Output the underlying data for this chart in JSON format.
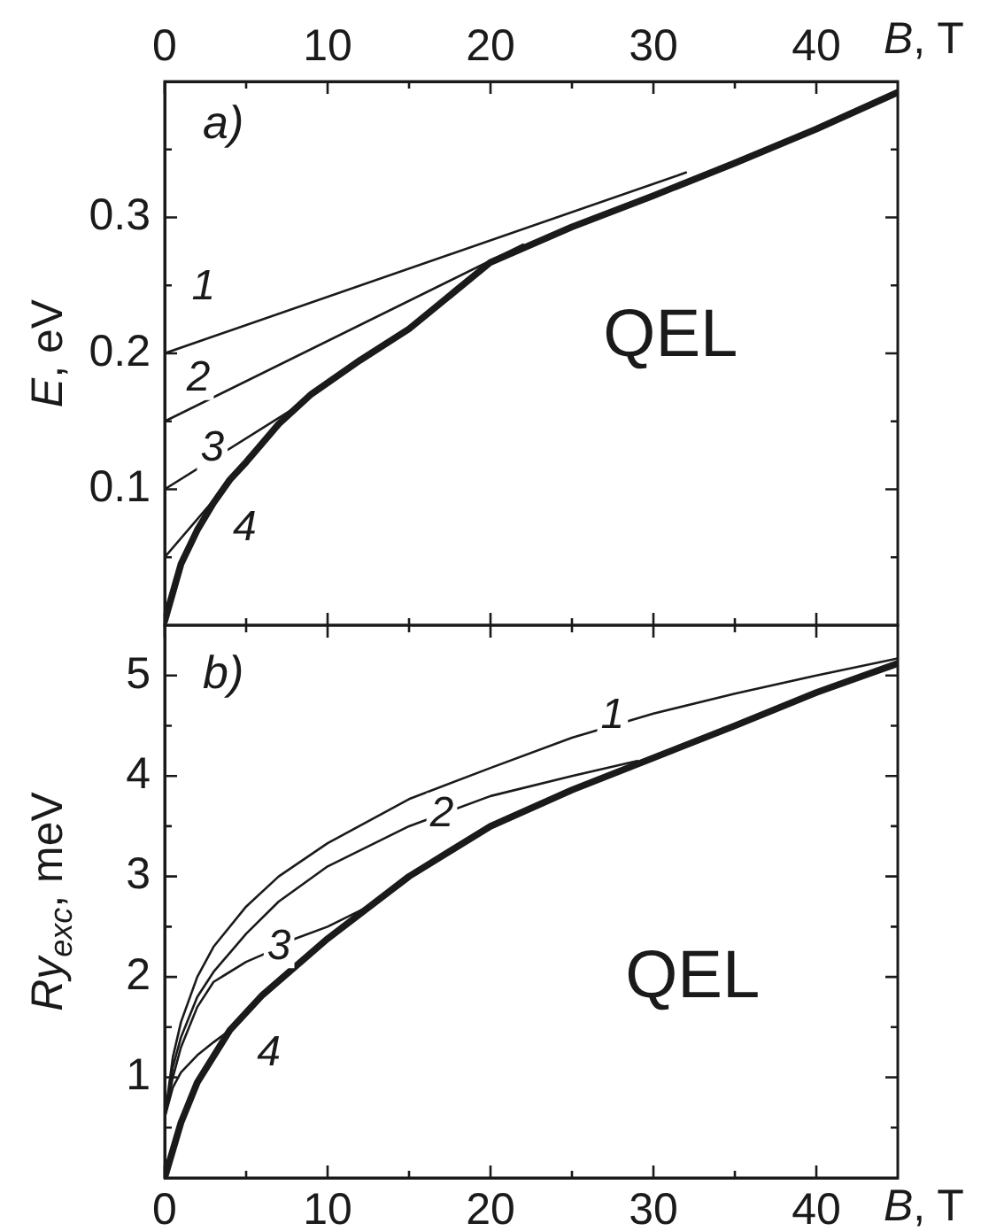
{
  "chart_data": [
    {
      "type": "line",
      "xlabel": "B, T",
      "ylabel": "E, eV",
      "xlim": [
        0,
        45
      ],
      "xticks": [
        0,
        {
          "value": 5,
          "label": null
        },
        10,
        {
          "value": 15,
          "label": null
        },
        20,
        {
          "value": 25,
          "label": null
        },
        30,
        {
          "value": 35,
          "label": null
        },
        40
      ],
      "ylim": [
        0,
        0.4
      ],
      "yticks": [
        {
          "value": 0.05,
          "label": null
        },
        0.1,
        {
          "value": 0.15,
          "label": null
        },
        0.2,
        {
          "value": 0.25,
          "label": null
        },
        0.3,
        {
          "value": 0.35,
          "label": null
        }
      ],
      "grid": false,
      "legend": false,
      "series": [
        {
          "name": "1",
          "color": "#1a1a1a",
          "x": [
            0,
            32
          ],
          "values": [
            0.2,
            0.333
          ]
        },
        {
          "name": "2",
          "color": "#1a1a1a",
          "x": [
            0,
            22
          ],
          "values": [
            0.15,
            0.28
          ]
        },
        {
          "name": "3",
          "color": "#1a1a1a",
          "x": [
            0,
            8
          ],
          "values": [
            0.1,
            0.16
          ]
        },
        {
          "name": "4",
          "color": "#1a1a1a",
          "x": [
            0,
            3.5
          ],
          "values": [
            0.05,
            0.099
          ]
        },
        {
          "color": "#1a1a1a",
          "x": [
            0,
            1,
            2,
            3,
            4,
            5,
            7,
            9,
            12,
            15,
            20,
            25,
            30,
            35,
            40,
            45
          ],
          "values": [
            0.003,
            0.045,
            0.07,
            0.09,
            0.107,
            0.12,
            0.148,
            0.17,
            0.195,
            0.218,
            0.267,
            0.293,
            0.316,
            0.34,
            0.365,
            0.392
          ]
        }
      ],
      "annotations": [
        "a)",
        "QEL"
      ]
    },
    {
      "type": "line",
      "xlabel": "B, T",
      "ylabel": "Ry$_{exc}$, meV",
      "xlim": [
        0,
        45
      ],
      "xticks": [
        0,
        {
          "value": 5,
          "label": null
        },
        10,
        {
          "value": 15,
          "label": null
        },
        20,
        {
          "value": 25,
          "label": null
        },
        30,
        {
          "value": 35,
          "label": null
        },
        40
      ],
      "ylim": [
        0,
        5.5
      ],
      "yticks": [
        {
          "value": 0.5,
          "label": null
        },
        1,
        {
          "value": 1.5,
          "label": null
        },
        2,
        {
          "value": 2.5,
          "label": null
        },
        3,
        {
          "value": 3.5,
          "label": null
        },
        4,
        {
          "value": 4.5,
          "label": null
        },
        5
      ],
      "grid": false,
      "legend": false,
      "series": [
        {
          "name": "1",
          "color": "#1a1a1a",
          "x": [
            0,
            0.5,
            1,
            2,
            3,
            5,
            7,
            10,
            15,
            20,
            25,
            30,
            35,
            40,
            45
          ],
          "values": [
            0.6,
            1.2,
            1.55,
            2.0,
            2.3,
            2.7,
            3.0,
            3.33,
            3.77,
            4.08,
            4.38,
            4.62,
            4.82,
            5.0,
            5.17
          ]
        },
        {
          "name": "2",
          "color": "#1a1a1a",
          "x": [
            0,
            0.5,
            1,
            2,
            3,
            5,
            7,
            10,
            15,
            20,
            25,
            29
          ],
          "values": [
            0.6,
            1.1,
            1.4,
            1.8,
            2.05,
            2.43,
            2.75,
            3.1,
            3.5,
            3.8,
            4.0,
            4.15
          ]
        },
        {
          "name": "3",
          "color": "#1a1a1a",
          "x": [
            0,
            0.5,
            1,
            2,
            3,
            5,
            6,
            8,
            10,
            12.5
          ],
          "values": [
            0.6,
            1.0,
            1.3,
            1.7,
            1.95,
            2.15,
            2.22,
            2.38,
            2.5,
            2.7
          ]
        },
        {
          "name": "4",
          "color": "#1a1a1a",
          "x": [
            0,
            0.5,
            1,
            2,
            3,
            4
          ],
          "values": [
            0.6,
            0.9,
            1.05,
            1.22,
            1.35,
            1.47
          ]
        },
        {
          "color": "#1a1a1a",
          "x": [
            0,
            1,
            2,
            4,
            6,
            10,
            15,
            20,
            25,
            30,
            35,
            40,
            45
          ],
          "values": [
            0,
            0.55,
            0.95,
            1.47,
            1.82,
            2.38,
            3.0,
            3.5,
            3.86,
            4.18,
            4.5,
            4.83,
            5.12
          ]
        }
      ],
      "annotations": [
        "b)",
        "QEL"
      ]
    }
  ]
}
